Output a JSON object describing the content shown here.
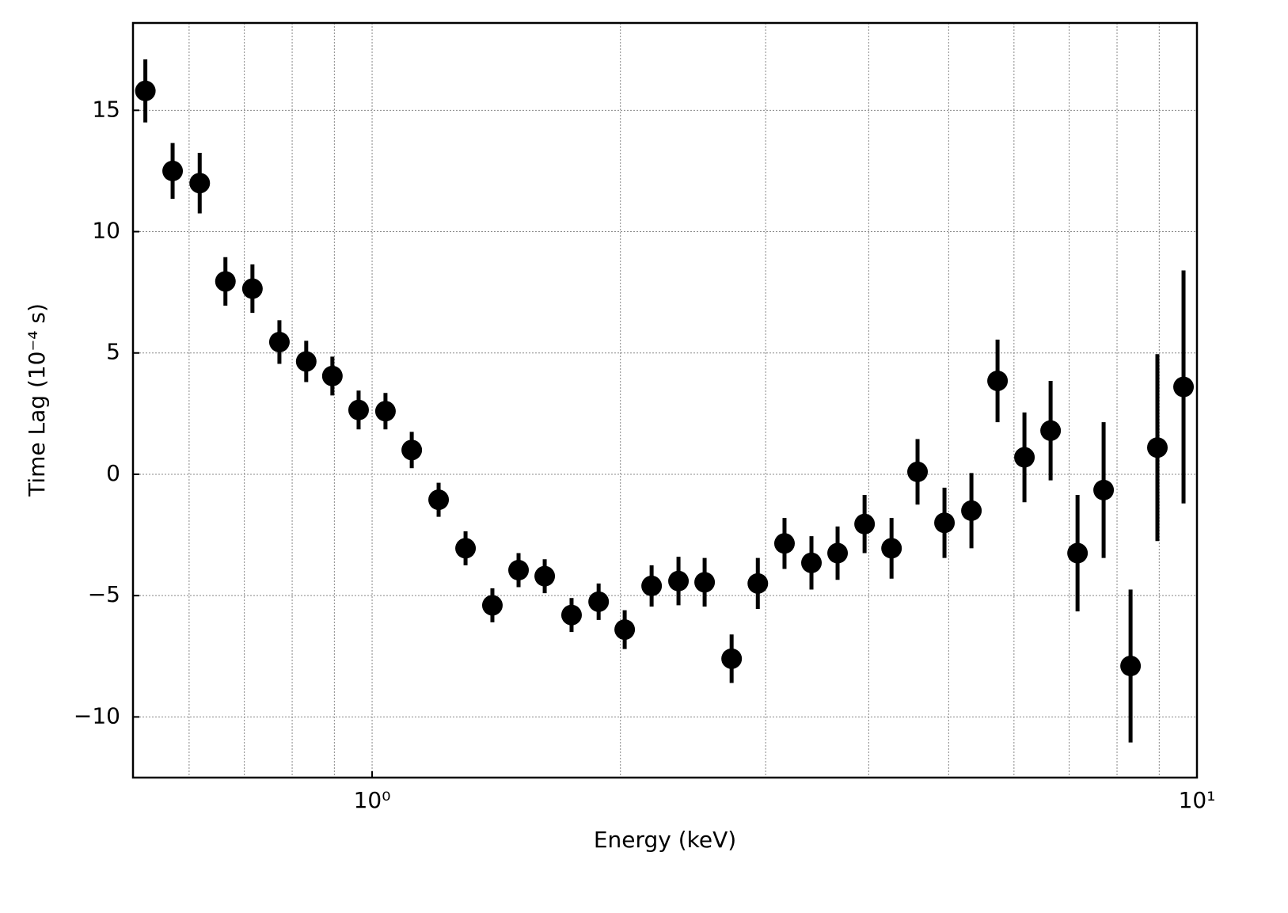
{
  "chart_data": {
    "type": "errorbar",
    "xlabel": "Energy (keV)",
    "ylabel": "Time Lag (10⁻⁴ s)",
    "xscale": "log",
    "grid": true,
    "xlim": [
      0.513,
      10
    ],
    "ylim": [
      -12.5,
      18.6
    ],
    "xticks": [
      {
        "value": 1,
        "label": "10⁰"
      },
      {
        "value": 10,
        "label": "10¹"
      }
    ],
    "xminorticks": [
      0.6,
      0.7,
      0.8,
      0.9,
      2,
      3,
      4,
      5,
      6,
      7,
      8,
      9
    ],
    "yticks": [
      {
        "value": -10,
        "label": "−10"
      },
      {
        "value": -5,
        "label": "−5"
      },
      0,
      5,
      10,
      15
    ],
    "series": [
      {
        "color": "#000000",
        "x": [
          0.531,
          0.573,
          0.618,
          0.664,
          0.716,
          0.772,
          0.832,
          0.895,
          0.963,
          1.038,
          1.117,
          1.204,
          1.298,
          1.399,
          1.505,
          1.619,
          1.745,
          1.882,
          2.024,
          2.182,
          2.352,
          2.53,
          2.728,
          2.935,
          3.162,
          3.409,
          3.667,
          3.954,
          4.263,
          4.584,
          4.942,
          5.328,
          5.731,
          6.178,
          6.646,
          7.165,
          7.706,
          8.308,
          8.954,
          9.632
        ],
        "values": [
          15.8,
          12.5,
          12.0,
          7.95,
          7.65,
          5.45,
          4.65,
          4.05,
          2.65,
          2.6,
          1.0,
          -1.05,
          -3.05,
          -5.4,
          -3.95,
          -4.2,
          -5.8,
          -5.25,
          -6.4,
          -4.6,
          -4.4,
          -4.45,
          -7.6,
          -4.5,
          -2.85,
          -3.65,
          -3.25,
          -2.05,
          -3.05,
          0.1,
          -2.0,
          -1.5,
          3.85,
          0.7,
          1.8,
          -3.25,
          -0.65,
          -7.9,
          1.1,
          3.6
        ],
        "errors": [
          1.3,
          1.15,
          1.25,
          1.0,
          1.0,
          0.9,
          0.85,
          0.8,
          0.8,
          0.75,
          0.75,
          0.7,
          0.7,
          0.7,
          0.7,
          0.7,
          0.7,
          0.75,
          0.8,
          0.85,
          1.0,
          1.0,
          1.0,
          1.05,
          1.05,
          1.1,
          1.1,
          1.2,
          1.25,
          1.35,
          1.45,
          1.55,
          1.7,
          1.85,
          2.05,
          2.4,
          2.8,
          3.15,
          3.85,
          4.8
        ]
      }
    ]
  }
}
